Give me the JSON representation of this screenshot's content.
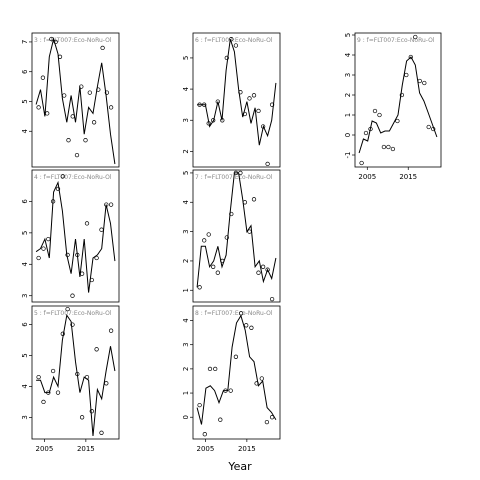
{
  "xlabel": "Year",
  "xticks": [
    2005,
    2015
  ],
  "chart_data": [
    {
      "type": "line",
      "label": "3 : f=FLT007:Eco-NoRu-Ol",
      "ylim": [
        2.8,
        7.3
      ],
      "yticks": [
        4,
        5,
        6,
        7
      ],
      "points_y": [
        4.8,
        5.8,
        4.6,
        7.1,
        7.0,
        6.5,
        5.2,
        3.7,
        4.5,
        3.2,
        5.5,
        3.7,
        5.3,
        4.3,
        5.4,
        6.8,
        5.3,
        4.8
      ],
      "line_y": [
        4.9,
        5.4,
        4.5,
        6.5,
        7.1,
        6.6,
        5.1,
        4.3,
        5.2,
        4.3,
        5.5,
        3.9,
        4.8,
        4.6,
        5.5,
        6.3,
        5.2,
        3.9,
        2.9
      ]
    },
    {
      "type": "line",
      "label": "6 : f=FLT007:Eco-NoRu-Ol",
      "ylim": [
        1.5,
        5.8
      ],
      "yticks": [
        2,
        3,
        4,
        5
      ],
      "points_y": [
        3.5,
        3.5,
        2.9,
        3.0,
        3.6,
        3.0,
        5.0,
        5.6,
        5.4,
        3.9,
        3.2,
        3.7,
        3.8,
        3.3,
        2.8,
        1.6,
        3.5
      ],
      "line_y": [
        3.5,
        3.5,
        3.5,
        2.8,
        3.0,
        3.6,
        3.0,
        4.6,
        5.6,
        5.2,
        4.0,
        3.1,
        3.6,
        2.9,
        3.4,
        2.2,
        2.8,
        2.5,
        3.0,
        4.2
      ]
    },
    {
      "type": "line",
      "label": "9 : f=FLT007:Eco-NoRu-Ol",
      "ylim": [
        -1.6,
        5.1
      ],
      "yticks": [
        -1,
        0,
        1,
        2,
        3,
        4,
        5
      ],
      "points_y": [
        -1.4,
        0.1,
        0.3,
        1.2,
        1.0,
        -0.6,
        -0.6,
        -0.7,
        0.7,
        2.0,
        3.0,
        3.9,
        4.9,
        2.7,
        2.6,
        0.4,
        0.3
      ],
      "line_y": [
        -0.9,
        -0.2,
        -0.3,
        0.7,
        0.6,
        0.1,
        0.2,
        0.2,
        0.6,
        1.0,
        2.5,
        3.7,
        3.9,
        3.5,
        2.1,
        1.7,
        1.1,
        0.5,
        -0.1
      ]
    },
    {
      "type": "line",
      "label": "4 : f=FLT007:Eco-NoRu-Ol",
      "ylim": [
        2.8,
        7.0
      ],
      "yticks": [
        3,
        4,
        5,
        6
      ],
      "points_y": [
        4.2,
        4.5,
        4.8,
        6.0,
        6.4,
        6.8,
        4.3,
        3.0,
        4.3,
        3.7,
        5.3,
        3.5,
        4.2,
        5.1,
        5.9,
        5.9
      ],
      "line_y": [
        4.4,
        4.5,
        4.8,
        4.2,
        6.3,
        6.6,
        5.7,
        4.3,
        3.7,
        4.8,
        3.6,
        4.8,
        3.1,
        4.2,
        4.3,
        4.5,
        5.9,
        5.3,
        4.1
      ]
    },
    {
      "type": "line",
      "label": "7 : f=FLT007:Eco-NoRu-Ol",
      "ylim": [
        0.6,
        5.1
      ],
      "yticks": [
        1,
        2,
        3,
        4,
        5
      ],
      "points_y": [
        1.1,
        2.7,
        2.9,
        1.8,
        1.6,
        2.0,
        2.8,
        3.6,
        5.0,
        5.0,
        4.0,
        3.0,
        4.1,
        1.6,
        1.8,
        1.7,
        0.7
      ],
      "line_y": [
        1.1,
        2.5,
        2.5,
        1.8,
        2.0,
        2.5,
        1.8,
        2.2,
        3.7,
        5.0,
        5.0,
        4.1,
        3.0,
        3.2,
        1.8,
        2.0,
        1.3,
        1.7,
        1.4,
        2.1
      ]
    },
    {
      "type": "line",
      "label": "5 : f=FLT007:Eco-NoRu-Ol",
      "ylim": [
        2.3,
        6.6
      ],
      "yticks": [
        3,
        4,
        5,
        6
      ],
      "points_y": [
        4.3,
        3.5,
        3.8,
        4.5,
        3.8,
        5.7,
        6.5,
        6.0,
        4.4,
        3.0,
        4.3,
        3.2,
        5.2,
        2.5,
        4.1,
        5.8
      ],
      "line_y": [
        4.2,
        4.2,
        3.8,
        3.8,
        4.3,
        4.0,
        5.5,
        6.3,
        6.1,
        4.8,
        3.8,
        4.3,
        4.2,
        2.4,
        3.9,
        3.6,
        4.5,
        5.3,
        4.5
      ]
    },
    {
      "type": "line",
      "label": "8 : f=FLT007:Eco-NoRu-Ol",
      "ylim": [
        -0.9,
        4.6
      ],
      "yticks": [
        0,
        1,
        2,
        3,
        4
      ],
      "points_y": [
        0.5,
        -0.7,
        2.0,
        2.0,
        -0.1,
        1.1,
        1.1,
        2.5,
        4.3,
        3.8,
        3.7,
        1.4,
        1.6,
        -0.2,
        0.0
      ],
      "line_y": [
        0.4,
        -0.3,
        1.2,
        1.3,
        1.1,
        0.6,
        1.1,
        1.1,
        2.9,
        3.9,
        4.2,
        3.6,
        2.5,
        2.3,
        1.3,
        1.5,
        0.4,
        0.2,
        -0.1
      ]
    }
  ]
}
